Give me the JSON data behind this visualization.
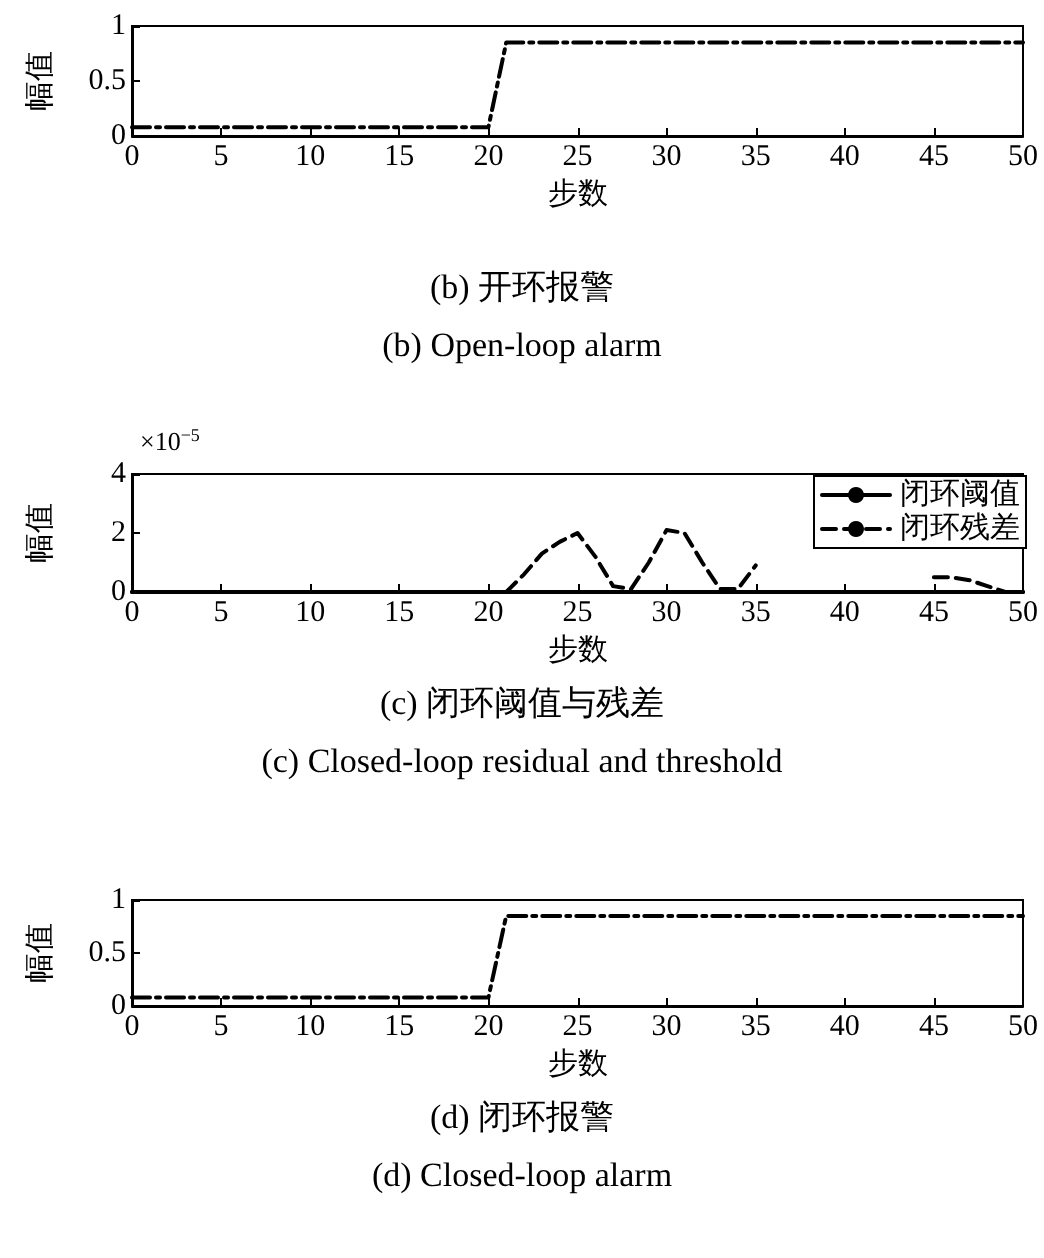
{
  "chart_data": [
    {
      "type": "line",
      "title": "(b) 开环报警",
      "subtitle": "(b) Open-loop alarm",
      "xlabel": "步数",
      "ylabel": "幅值",
      "x": [
        0,
        20,
        21,
        50
      ],
      "series": [
        {
          "color": "#000000",
          "values": [
            0.08,
            0.08,
            0.85,
            0.85
          ],
          "line_style": "dashdot"
        }
      ],
      "xlim": [
        0,
        50
      ],
      "xticks": [
        0,
        5,
        10,
        15,
        20,
        25,
        30,
        35,
        40,
        45,
        50
      ],
      "ylim": [
        0,
        1
      ],
      "yticks": [
        0,
        0.5,
        1
      ],
      "grid": false,
      "legend": false,
      "marker": "none"
    },
    {
      "type": "line",
      "title": "(c) 闭环阈值与残差",
      "subtitle": "(c) Closed-loop residual and threshold",
      "xlabel": "步数",
      "ylabel": "幅值",
      "annotations": [
        "×10$^{−5}$"
      ],
      "x": [
        0,
        5,
        10,
        15,
        20,
        21,
        22,
        23,
        24,
        25,
        26,
        27,
        28,
        29,
        30,
        31,
        32,
        33,
        34,
        35,
        36,
        37,
        38,
        39,
        40,
        41,
        42,
        43,
        44,
        45,
        46,
        47,
        48,
        49,
        50
      ],
      "series": [
        {
          "name": "闭环阈值",
          "color": "#000000",
          "line_style": "solid",
          "values": [
            0,
            0,
            0,
            0,
            0,
            0,
            0,
            0,
            0,
            0,
            0,
            0,
            0,
            0,
            0,
            0,
            0,
            0,
            0,
            0,
            0,
            0,
            0,
            0,
            0,
            0,
            0,
            0,
            0,
            0,
            0,
            0,
            0,
            0,
            0
          ]
        },
        {
          "name": "闭环残差",
          "color": "#000000",
          "line_style": "dashed",
          "values": [
            0,
            0,
            0,
            0,
            0,
            0,
            0.6,
            1.3,
            1.7,
            2.0,
            1.2,
            0.2,
            0.1,
            1.0,
            2.1,
            2.0,
            1.0,
            0.1,
            0.1,
            0.9,
            null,
            null,
            null,
            null,
            null,
            null,
            null,
            null,
            null,
            0.5,
            0.5,
            0.4,
            0.2,
            0,
            0
          ]
        }
      ],
      "xlim": [
        0,
        50
      ],
      "xticks": [
        0,
        5,
        10,
        15,
        20,
        25,
        30,
        35,
        40,
        45,
        50
      ],
      "ylim": [
        0,
        4
      ],
      "yticks": [
        0,
        2,
        4
      ],
      "grid": false,
      "legend": "top right",
      "marker": "none"
    },
    {
      "type": "line",
      "title": "(d) 闭环报警",
      "subtitle": "(d) Closed-loop alarm",
      "xlabel": "步数",
      "ylabel": "幅值",
      "x": [
        0,
        20,
        21,
        50
      ],
      "series": [
        {
          "color": "#000000",
          "values": [
            0.08,
            0.08,
            0.85,
            0.85
          ],
          "line_style": "dashdot"
        }
      ],
      "xlim": [
        0,
        50
      ],
      "xticks": [
        0,
        5,
        10,
        15,
        20,
        25,
        30,
        35,
        40,
        45,
        50
      ],
      "ylim": [
        0,
        1
      ],
      "yticks": [
        0,
        0.5,
        1
      ],
      "grid": false,
      "legend": false,
      "marker": "none"
    }
  ]
}
